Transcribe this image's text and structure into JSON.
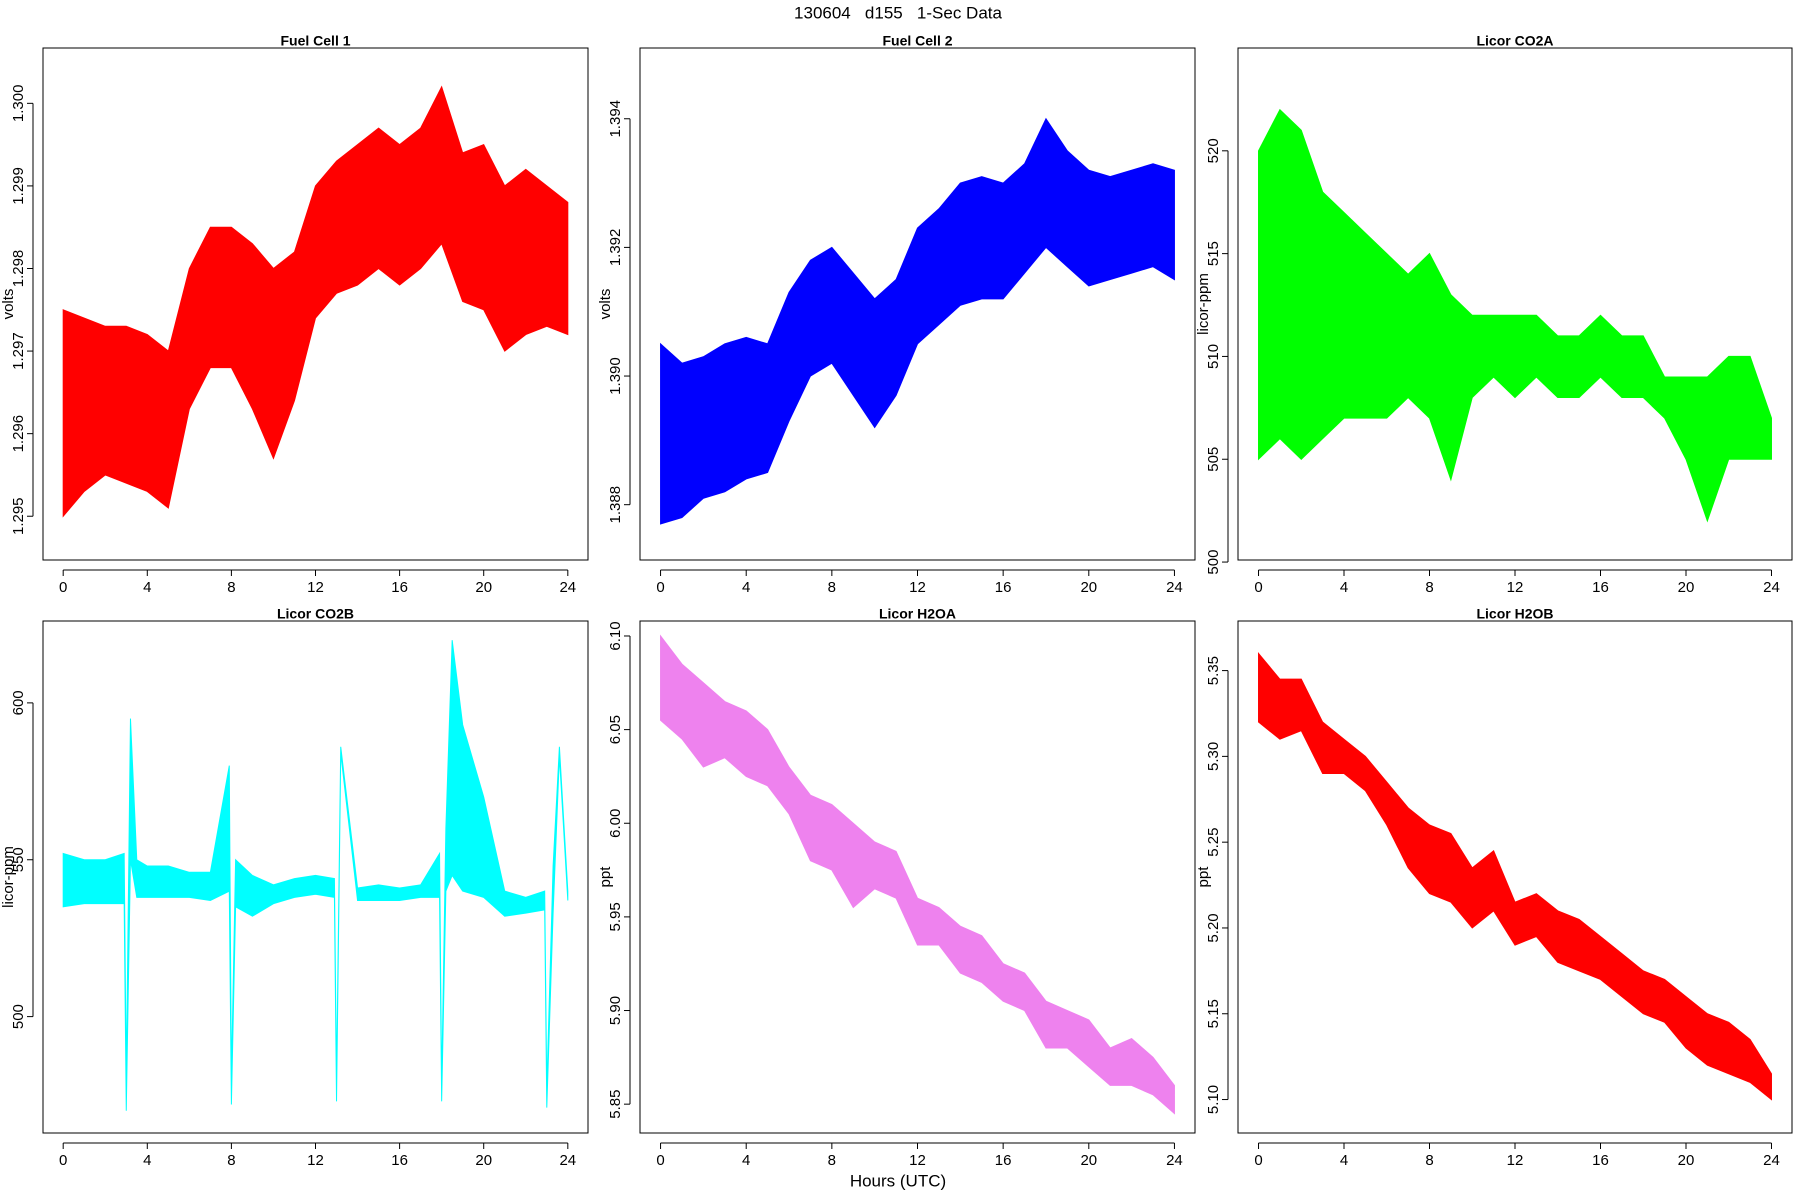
{
  "title": "130604   d155   1-Sec Data",
  "xlabel": "Hours (UTC)",
  "chart_data": [
    {
      "type": "line",
      "title": "Fuel Cell 1",
      "ylabel": "volts",
      "x": [
        0,
        1,
        2,
        3,
        4,
        5,
        6,
        7,
        8,
        9,
        10,
        11,
        12,
        13,
        14,
        15,
        16,
        17,
        18,
        19,
        20,
        21,
        22,
        23,
        24
      ],
      "series": [
        {
          "color": "#ff0000",
          "values": [
            1.2975,
            1.2974,
            1.2973,
            1.2973,
            1.2972,
            1.297,
            1.298,
            1.2985,
            1.2985,
            1.2983,
            1.298,
            1.2982,
            1.299,
            1.2993,
            1.2995,
            1.2997,
            1.2995,
            1.2997,
            1.3002,
            1.2994,
            1.2995,
            1.299,
            1.2992,
            1.299,
            1.2988
          ]
        },
        {
          "color": "#ff0000",
          "values": [
            1.295,
            1.2953,
            1.2955,
            1.2954,
            1.2953,
            1.2951,
            1.2963,
            1.2968,
            1.2968,
            1.2963,
            1.2957,
            1.2964,
            1.2974,
            1.2977,
            1.2978,
            1.298,
            1.2978,
            1.298,
            1.2983,
            1.2976,
            1.2975,
            1.297,
            1.2972,
            1.2973,
            1.2972
          ]
        }
      ],
      "xlim": [
        -0.96,
        24.96
      ],
      "xticks": [
        0,
        4,
        8,
        12,
        16,
        20,
        24
      ],
      "ylim": [
        1.29447,
        1.30067
      ],
      "yticks": [
        1.295,
        1.296,
        1.297,
        1.298,
        1.299,
        {
          "value": 1.3,
          "label": "1.300"
        }
      ]
    },
    {
      "type": "line",
      "title": "Fuel Cell 2",
      "ylabel": "volts",
      "x": [
        0,
        1,
        2,
        3,
        4,
        5,
        6,
        7,
        8,
        9,
        10,
        11,
        12,
        13,
        14,
        15,
        16,
        17,
        18,
        19,
        20,
        21,
        22,
        23,
        24
      ],
      "series": [
        {
          "color": "#0000ff",
          "values": [
            1.3905,
            1.3902,
            1.3903,
            1.3905,
            1.3906,
            1.3905,
            1.3913,
            1.3918,
            1.392,
            1.3916,
            1.3912,
            1.3915,
            1.3923,
            1.3926,
            1.393,
            1.3931,
            1.393,
            1.3933,
            1.394,
            1.3935,
            1.3932,
            1.3931,
            1.3932,
            1.3933,
            1.3932
          ]
        },
        {
          "color": "#0000ff",
          "values": [
            1.3877,
            1.3878,
            1.3881,
            1.3882,
            1.3884,
            1.3885,
            1.3893,
            1.39,
            1.3902,
            1.3897,
            1.3892,
            1.3897,
            1.3905,
            1.3908,
            1.3911,
            1.3912,
            1.3912,
            1.3916,
            1.392,
            1.3917,
            1.3914,
            1.3915,
            1.3916,
            1.3917,
            1.3915
          ]
        }
      ],
      "xlim": [
        -0.96,
        24.96
      ],
      "xticks": [
        0,
        4,
        8,
        12,
        16,
        20,
        24
      ],
      "ylim": [
        1.38714,
        1.3951
      ],
      "yticks": [
        1.388,
        {
          "value": 1.39,
          "label": "1.390"
        },
        1.392,
        1.394
      ]
    },
    {
      "type": "line",
      "title": "Licor CO2A",
      "ylabel": "licor-ppm",
      "x": [
        0,
        1,
        2,
        3,
        4,
        5,
        6,
        7,
        8,
        9,
        10,
        11,
        12,
        13,
        14,
        15,
        16,
        17,
        18,
        19,
        20,
        21,
        22,
        23,
        24
      ],
      "series": [
        {
          "color": "#00ff00",
          "values": [
            520,
            522,
            521,
            518,
            517,
            516,
            515,
            514,
            515,
            513,
            512,
            512,
            512,
            512,
            511,
            511,
            512,
            511,
            511,
            509,
            509,
            509,
            510,
            510,
            507
          ]
        },
        {
          "color": "#00ff00",
          "values": [
            505,
            506,
            505,
            506,
            507,
            507,
            507,
            508,
            507,
            504,
            508,
            509,
            508,
            509,
            508,
            508,
            509,
            508,
            508,
            507,
            505,
            502,
            505,
            505,
            505
          ]
        }
      ],
      "xlim": [
        -0.96,
        24.96
      ],
      "xticks": [
        0,
        4,
        8,
        12,
        16,
        20,
        24
      ],
      "ylim": [
        500.1,
        525
      ],
      "yticks": [
        500,
        505,
        510,
        515,
        520
      ]
    },
    {
      "type": "line",
      "title": "Licor CO2B",
      "ylabel": "licor-ppm",
      "x": [
        0,
        1,
        2,
        2.9,
        3.0,
        3.2,
        3.5,
        4,
        5,
        6,
        7,
        7.9,
        8.0,
        8.2,
        9,
        10,
        11,
        12,
        12.9,
        13.0,
        13.2,
        14,
        15,
        16,
        17,
        17.9,
        18.0,
        18.2,
        18.5,
        19,
        20,
        21,
        22,
        22.9,
        23.0,
        23.3,
        23.6,
        24
      ],
      "series": [
        {
          "color": "#00ffff",
          "values": [
            552,
            550,
            550,
            552,
            480,
            595,
            550,
            548,
            548,
            546,
            546,
            580,
            480,
            550,
            545,
            542,
            544,
            545,
            544,
            480,
            586,
            541,
            542,
            541,
            542,
            552,
            478,
            560,
            620,
            593,
            570,
            540,
            538,
            540,
            477,
            548,
            586,
            540
          ]
        },
        {
          "color": "#00ffff",
          "values": [
            535,
            536,
            536,
            536,
            470,
            550,
            538,
            538,
            538,
            538,
            537,
            540,
            472,
            535,
            532,
            536,
            538,
            539,
            538,
            473,
            584,
            537,
            537,
            537,
            538,
            538,
            473,
            540,
            545,
            540,
            538,
            532,
            533,
            534,
            471,
            533,
            583,
            537
          ]
        }
      ],
      "xlim": [
        -0.96,
        24.96
      ],
      "xticks": [
        0,
        4,
        8,
        12,
        16,
        20,
        24
      ],
      "ylim": [
        462.9,
        626.1
      ],
      "yticks": [
        500,
        550,
        600
      ]
    },
    {
      "type": "line",
      "title": "Licor H2OA",
      "ylabel": "ppt",
      "x": [
        0,
        1,
        2,
        3,
        4,
        5,
        6,
        7,
        8,
        9,
        10,
        11,
        12,
        13,
        14,
        15,
        16,
        17,
        18,
        19,
        20,
        21,
        22,
        23,
        24
      ],
      "series": [
        {
          "color": "#ee82ee",
          "values": [
            6.1,
            6.085,
            6.075,
            6.065,
            6.06,
            6.05,
            6.03,
            6.015,
            6.01,
            6.0,
            5.99,
            5.985,
            5.96,
            5.955,
            5.945,
            5.94,
            5.925,
            5.92,
            5.905,
            5.9,
            5.895,
            5.88,
            5.885,
            5.875,
            5.86
          ]
        },
        {
          "color": "#ee82ee",
          "values": [
            6.055,
            6.045,
            6.03,
            6.035,
            6.025,
            6.02,
            6.005,
            5.98,
            5.975,
            5.955,
            5.965,
            5.96,
            5.935,
            5.935,
            5.92,
            5.915,
            5.905,
            5.9,
            5.88,
            5.88,
            5.87,
            5.86,
            5.86,
            5.855,
            5.845
          ]
        }
      ],
      "xlim": [
        -0.96,
        24.96
      ],
      "xticks": [
        0,
        4,
        8,
        12,
        16,
        20,
        24
      ],
      "ylim": [
        5.8346,
        6.108
      ],
      "yticks": [
        5.85,
        {
          "value": 5.9,
          "label": "5.90"
        },
        5.95,
        {
          "value": 6,
          "label": "6.00"
        },
        6.05,
        {
          "value": 6.1,
          "label": "6.10"
        }
      ]
    },
    {
      "type": "line",
      "title": "Licor H2OB",
      "ylabel": "ppt",
      "x": [
        0,
        1,
        2,
        3,
        4,
        5,
        6,
        7,
        8,
        9,
        10,
        11,
        12,
        13,
        14,
        15,
        16,
        17,
        18,
        19,
        20,
        21,
        22,
        23,
        24
      ],
      "series": [
        {
          "color": "#ff0000",
          "values": [
            5.36,
            5.345,
            5.345,
            5.32,
            5.31,
            5.3,
            5.285,
            5.27,
            5.26,
            5.255,
            5.235,
            5.245,
            5.215,
            5.22,
            5.21,
            5.205,
            5.195,
            5.185,
            5.175,
            5.17,
            5.16,
            5.15,
            5.145,
            5.135,
            5.115
          ]
        },
        {
          "color": "#ff0000",
          "values": [
            5.32,
            5.31,
            5.315,
            5.29,
            5.29,
            5.28,
            5.26,
            5.235,
            5.22,
            5.215,
            5.2,
            5.21,
            5.19,
            5.195,
            5.18,
            5.175,
            5.17,
            5.16,
            5.15,
            5.145,
            5.13,
            5.12,
            5.115,
            5.11,
            5.1
          ]
        }
      ],
      "xlim": [
        -0.96,
        24.96
      ],
      "xticks": [
        0,
        4,
        8,
        12,
        16,
        20,
        24
      ],
      "ylim": [
        5.0805,
        5.3789
      ],
      "yticks": [
        {
          "value": 5.1,
          "label": "5.10"
        },
        5.15,
        {
          "value": 5.2,
          "label": "5.20"
        },
        5.25,
        {
          "value": 5.3,
          "label": "5.30"
        },
        5.35
      ]
    }
  ]
}
